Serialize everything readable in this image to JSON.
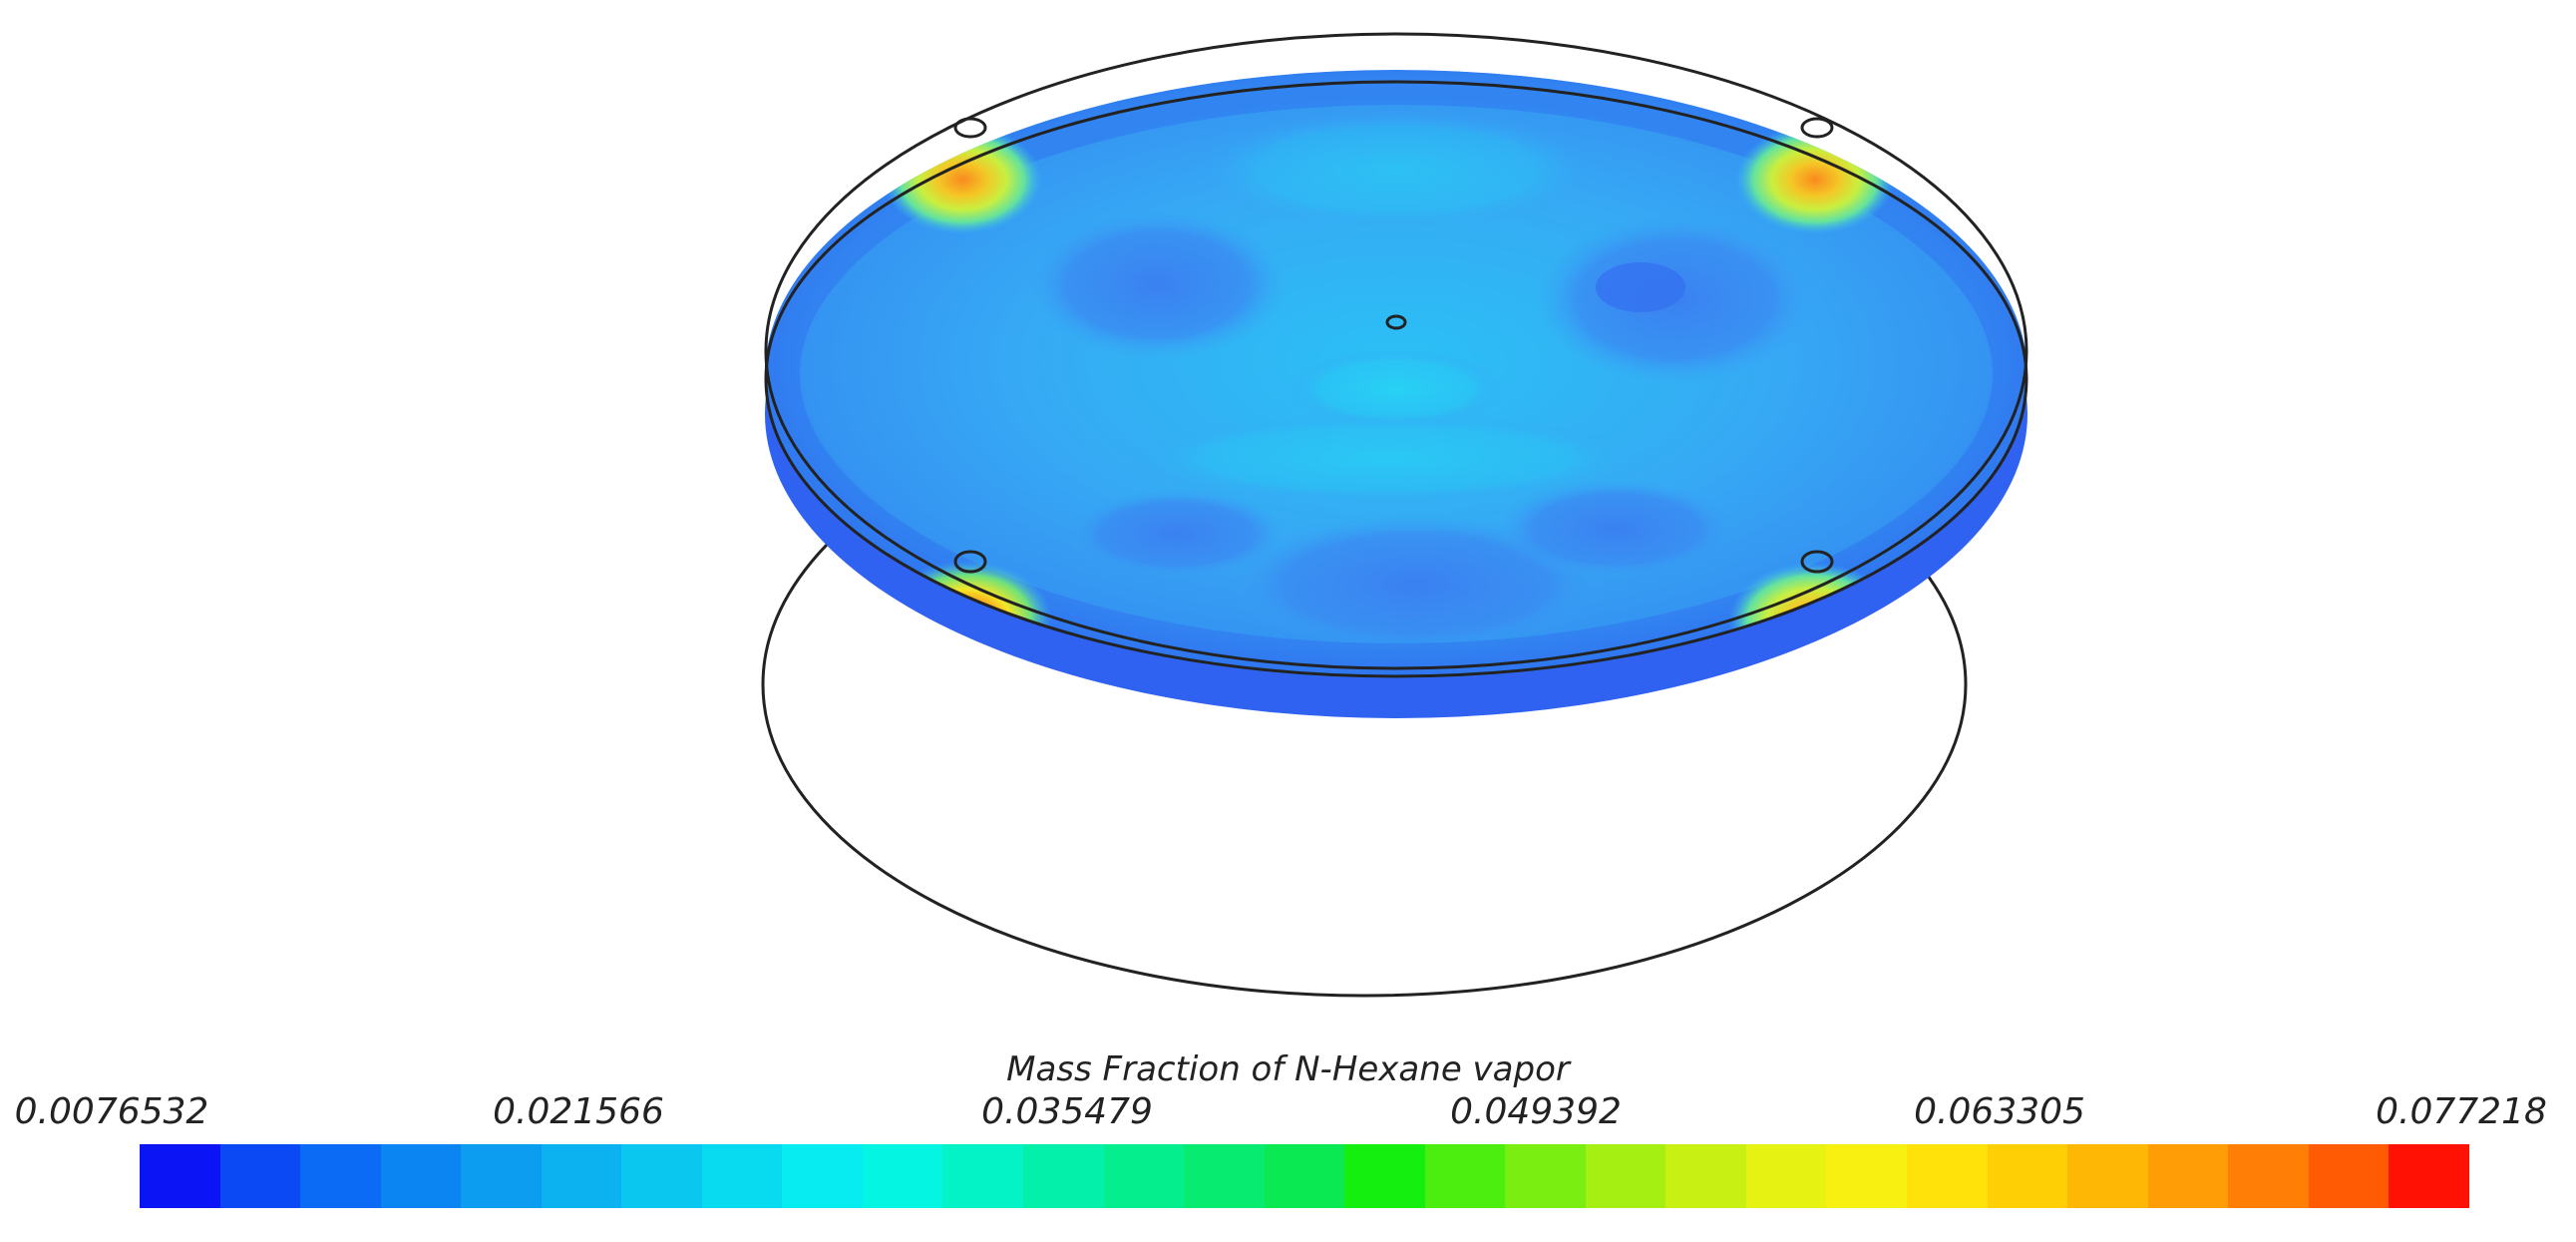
{
  "legend": {
    "title": "Mass Fraction of N-Hexane vapor",
    "ticks": [
      "0.0076532",
      "0.021566",
      "0.035479",
      "0.049392",
      "0.063305",
      "0.077218"
    ],
    "min": 0.0076532,
    "max": 0.077218,
    "band_colors": [
      "#0a14f5",
      "#0b49f5",
      "#0b6bf5",
      "#0b85f2",
      "#0c9cf0",
      "#0cb2f0",
      "#0ac7f0",
      "#08dbf0",
      "#06ecf0",
      "#04f5e2",
      "#03f2c6",
      "#03f0aa",
      "#04ee8d",
      "#06eb70",
      "#0ae852",
      "#14ef10",
      "#4cee10",
      "#7aee10",
      "#a5ef12",
      "#c8f012",
      "#e5f212",
      "#f8f010",
      "#ffe20a",
      "#ffcf06",
      "#ffb705",
      "#ff9d06",
      "#ff7f06",
      "#ff5b05",
      "#ff1204"
    ]
  },
  "field_colors": {
    "edge": "#2f6bf0",
    "dark_blue": "#3a87f2",
    "mid_blue": "#37a3f5",
    "light_blue": "#2cc2f5",
    "hotspot_outer": "#66e17a",
    "hotspot_mid": "#f4e526",
    "hotspot_inner": "#f98a1e",
    "hotspot_core": "#f43a18"
  }
}
